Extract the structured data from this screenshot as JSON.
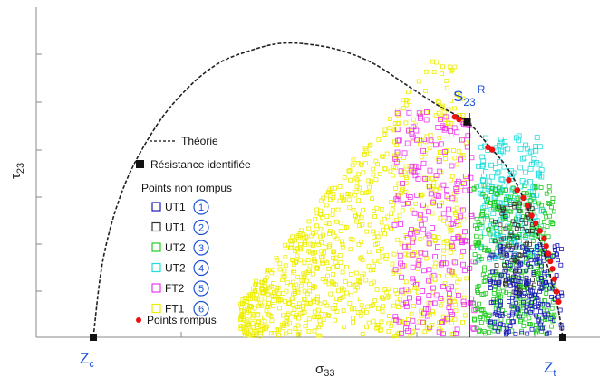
{
  "chart_data": {
    "type": "scatter",
    "title": "",
    "xlabel": "σ33",
    "ylabel": "τ23",
    "xlim": [
      -1.35,
      1.0
    ],
    "ylim": [
      0,
      1.25
    ],
    "grid": false,
    "legend_position": "left",
    "colors": {
      "theory": "#222222",
      "resistance": "#111111",
      "UT1_a": "#1a1ab8",
      "UT1_b": "#333333",
      "UT2_a": "#22cc22",
      "UT2_b": "#22dddd",
      "FT2": "#ee33ee",
      "FT1": "#eeee00",
      "rompus": "#ee1111",
      "labels": "#1a4fd6"
    },
    "theory_curve": {
      "name": "Théorie",
      "x": [
        -1.3,
        -1.25,
        -1.15,
        -1.0,
        -0.85,
        -0.7,
        -0.55,
        -0.4,
        -0.25,
        -0.1,
        0.05,
        0.2,
        0.35,
        0.5,
        0.6,
        0.7,
        0.78,
        0.85,
        0.9,
        0.94,
        0.96
      ],
      "y": [
        0.0,
        0.32,
        0.6,
        0.83,
        0.98,
        1.08,
        1.13,
        1.16,
        1.155,
        1.13,
        1.08,
        1.0,
        0.92,
        0.85,
        0.76,
        0.66,
        0.53,
        0.38,
        0.24,
        0.1,
        0.0
      ]
    },
    "resistance_points": {
      "name": "Résistance identifiée",
      "points": [
        [
          0.5,
          0.85
        ],
        [
          0.96,
          0.0
        ],
        [
          -1.3,
          0.0
        ]
      ],
      "label": "S",
      "label_sub": "23",
      "label_sup": "R"
    },
    "rompus_points": {
      "name": "Points rompus",
      "points": [
        [
          0.44,
          0.87
        ],
        [
          0.46,
          0.86
        ],
        [
          0.6,
          0.75
        ],
        [
          0.62,
          0.74
        ],
        [
          0.7,
          0.62
        ],
        [
          0.74,
          0.58
        ],
        [
          0.77,
          0.55
        ],
        [
          0.79,
          0.52
        ],
        [
          0.81,
          0.48
        ],
        [
          0.83,
          0.45
        ],
        [
          0.85,
          0.42
        ],
        [
          0.87,
          0.39
        ],
        [
          0.88,
          0.36
        ],
        [
          0.89,
          0.33
        ],
        [
          0.9,
          0.3
        ],
        [
          0.91,
          0.27
        ],
        [
          0.92,
          0.23
        ],
        [
          0.93,
          0.18
        ],
        [
          0.94,
          0.14
        ]
      ]
    },
    "legend": {
      "theory": "Théorie",
      "resistance": "Résistance identifiée",
      "group_title": "Points non rompus",
      "entries": [
        {
          "name": "UT1",
          "number": "1",
          "color": "#1a1ab8"
        },
        {
          "name": "UT1",
          "number": "2",
          "color": "#333333"
        },
        {
          "name": "UT2",
          "number": "3",
          "color": "#22cc22"
        },
        {
          "name": "UT2",
          "number": "4",
          "color": "#22dddd"
        },
        {
          "name": "FT2",
          "number": "5",
          "color": "#ee33ee"
        },
        {
          "name": "FT1",
          "number": "6",
          "color": "#eeee00"
        }
      ],
      "rompus": "Points rompus"
    },
    "axis_labels": {
      "zc_main": "Z",
      "zc_sub": "c",
      "zt_main": "Z",
      "zt_sub": "t",
      "x_main": "σ",
      "x_sub": "33",
      "y_main": "τ",
      "y_sub": "23"
    }
  }
}
